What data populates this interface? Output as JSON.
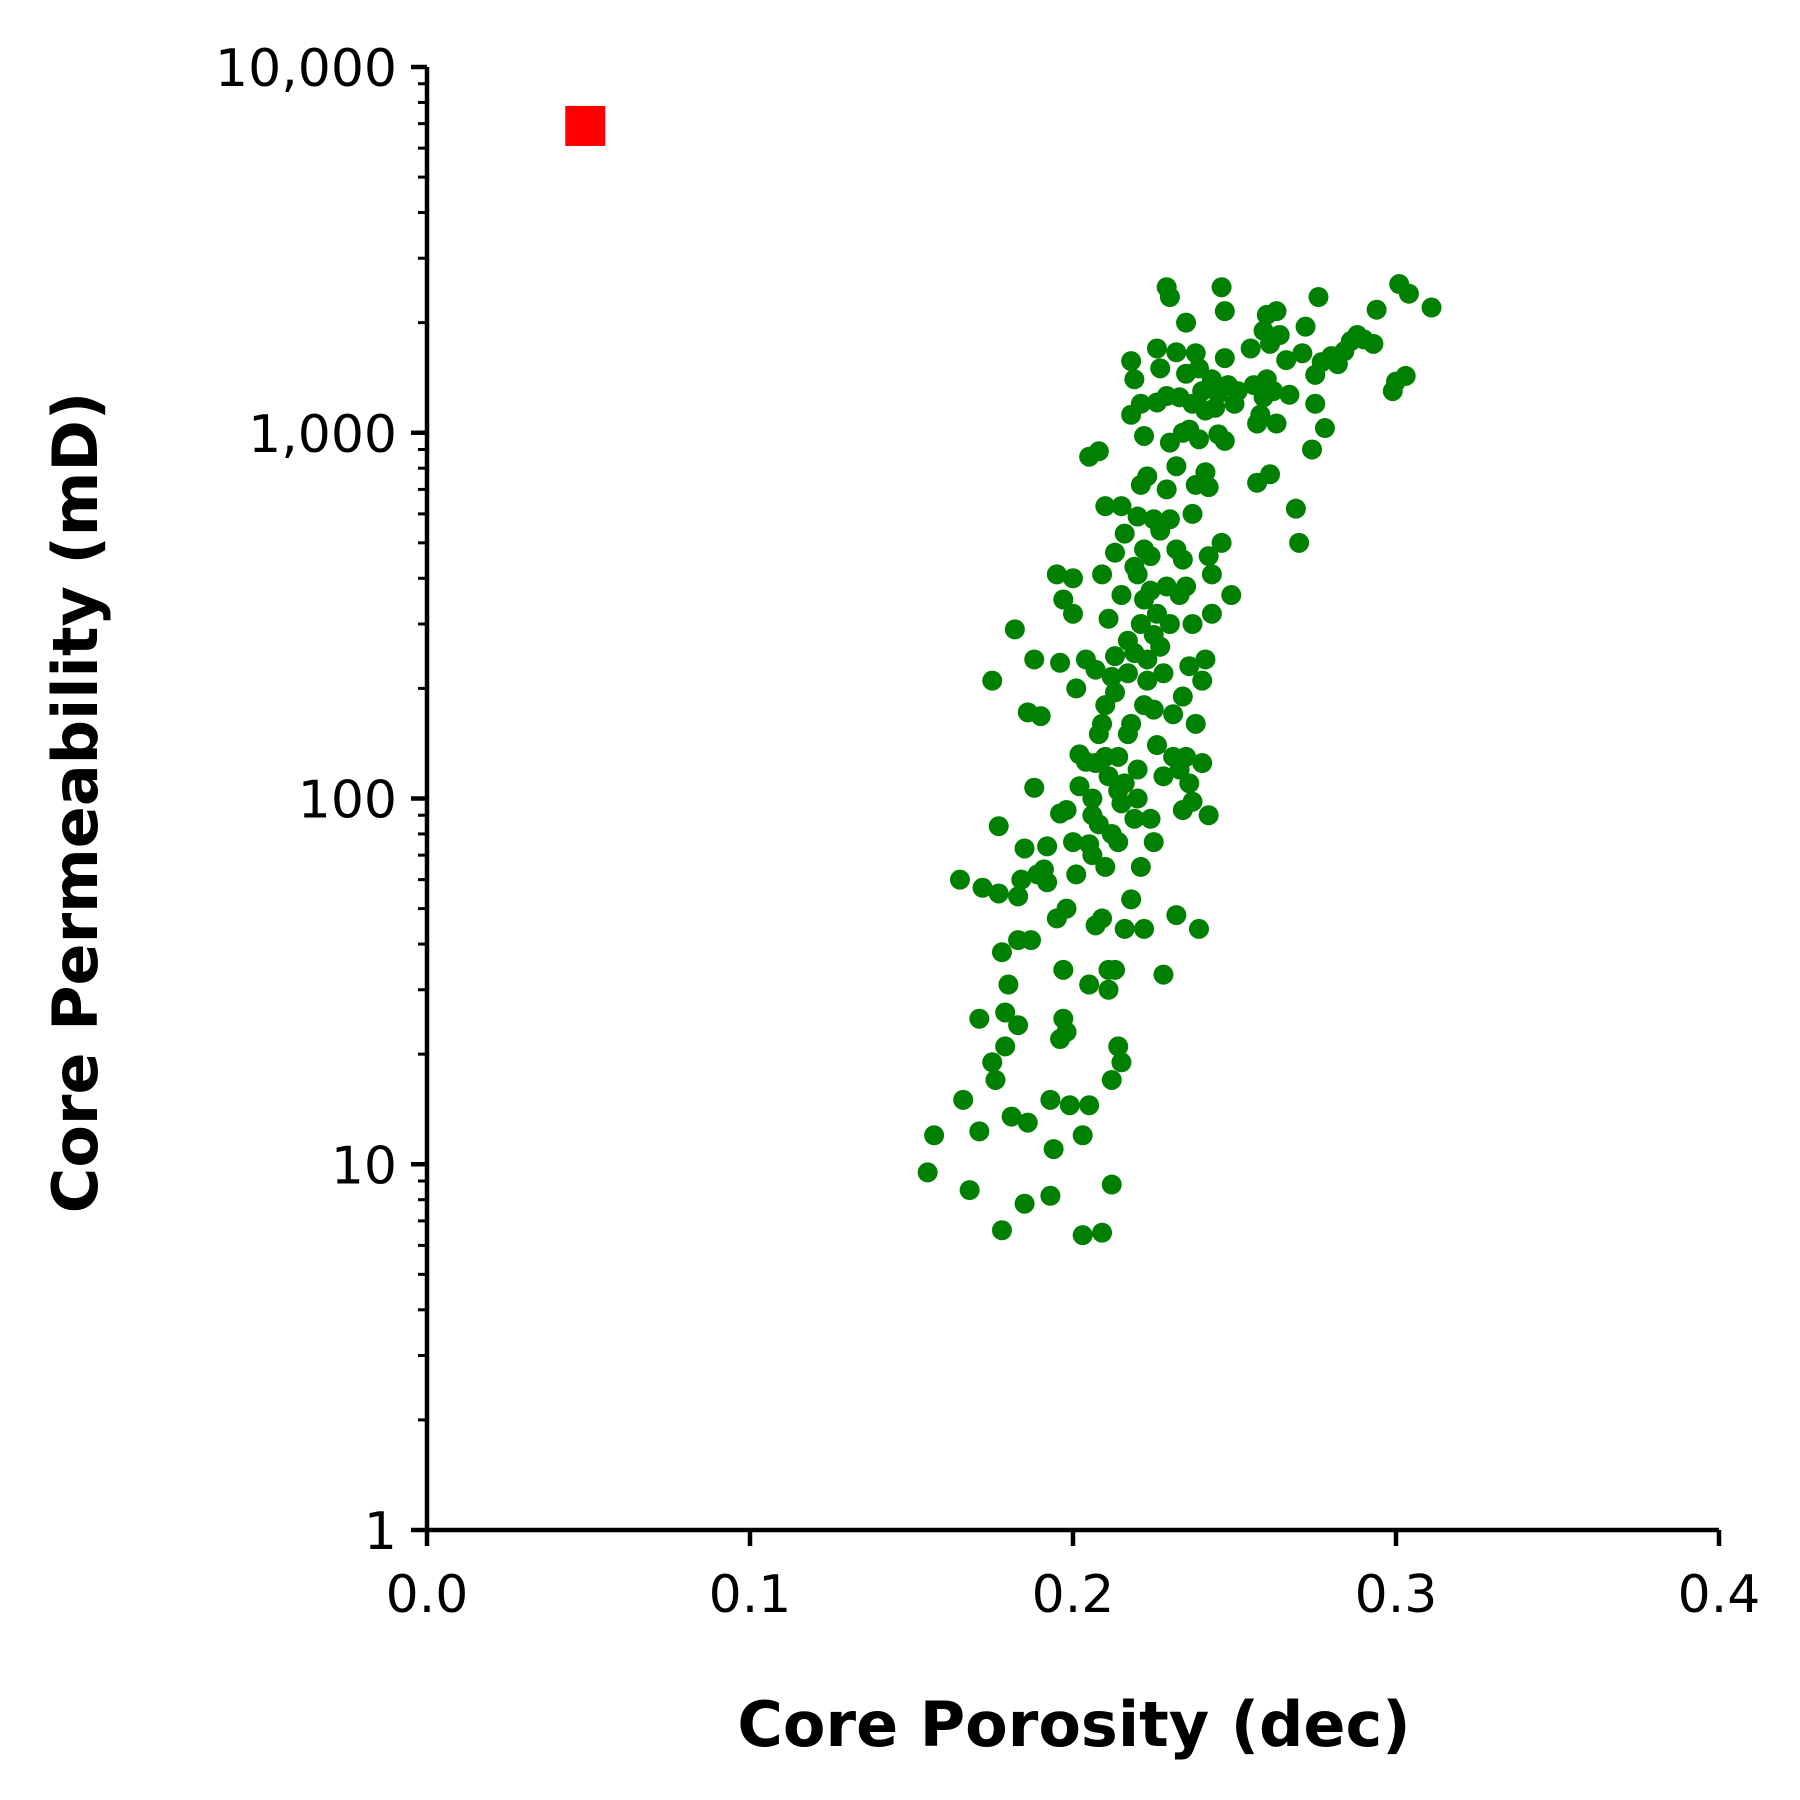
{
  "chart_data": {
    "type": "scatter",
    "title": "",
    "xlabel": "Core Porosity (dec)",
    "ylabel": "Core Permeability (mD)",
    "xlim": [
      0.0,
      0.4
    ],
    "ylim": [
      1,
      10000
    ],
    "yscale": "log",
    "grid": false,
    "x_ticks": [
      0.0,
      0.1,
      0.2,
      0.3,
      0.4
    ],
    "x_tick_labels": [
      "0.0",
      "0.1",
      "0.2",
      "0.3",
      "0.4"
    ],
    "y_ticks": [
      1,
      10,
      100,
      1000,
      10000
    ],
    "y_tick_labels": [
      "1",
      "10",
      "100",
      "1,000",
      "10,000"
    ],
    "colors": {
      "points": "#008000",
      "highlight": "#ff0000"
    },
    "series": [
      {
        "marker": "circle",
        "color": "#008000",
        "points": [
          [
            0.155,
            9.5
          ],
          [
            0.157,
            12
          ],
          [
            0.165,
            60
          ],
          [
            0.166,
            15
          ],
          [
            0.168,
            8.5
          ],
          [
            0.171,
            12.3
          ],
          [
            0.171,
            25
          ],
          [
            0.172,
            57
          ],
          [
            0.175,
            19
          ],
          [
            0.175,
            210
          ],
          [
            0.176,
            17
          ],
          [
            0.177,
            55
          ],
          [
            0.177,
            84
          ],
          [
            0.178,
            6.6
          ],
          [
            0.178,
            38
          ],
          [
            0.179,
            26
          ],
          [
            0.179,
            21
          ],
          [
            0.18,
            31
          ],
          [
            0.181,
            13.5
          ],
          [
            0.182,
            290
          ],
          [
            0.183,
            24
          ],
          [
            0.183,
            41
          ],
          [
            0.183,
            54
          ],
          [
            0.184,
            60
          ],
          [
            0.185,
            73
          ],
          [
            0.185,
            7.8
          ],
          [
            0.186,
            172
          ],
          [
            0.186,
            13
          ],
          [
            0.187,
            41
          ],
          [
            0.188,
            240
          ],
          [
            0.188,
            107
          ],
          [
            0.189,
            62
          ],
          [
            0.19,
            168
          ],
          [
            0.191,
            64
          ],
          [
            0.192,
            59
          ],
          [
            0.192,
            74
          ],
          [
            0.193,
            15
          ],
          [
            0.193,
            8.2
          ],
          [
            0.194,
            11
          ],
          [
            0.195,
            410
          ],
          [
            0.195,
            47
          ],
          [
            0.196,
            22
          ],
          [
            0.196,
            91
          ],
          [
            0.196,
            235
          ],
          [
            0.197,
            25
          ],
          [
            0.197,
            350
          ],
          [
            0.197,
            34
          ],
          [
            0.198,
            23
          ],
          [
            0.198,
            93
          ],
          [
            0.198,
            50
          ],
          [
            0.199,
            14.5
          ],
          [
            0.2,
            400
          ],
          [
            0.2,
            76
          ],
          [
            0.2,
            320
          ],
          [
            0.201,
            62
          ],
          [
            0.201,
            200
          ],
          [
            0.202,
            108
          ],
          [
            0.202,
            132
          ],
          [
            0.203,
            12
          ],
          [
            0.203,
            6.4
          ],
          [
            0.204,
            240
          ],
          [
            0.204,
            126
          ],
          [
            0.205,
            75
          ],
          [
            0.205,
            14.5
          ],
          [
            0.205,
            860
          ],
          [
            0.205,
            31
          ],
          [
            0.206,
            100
          ],
          [
            0.206,
            90
          ],
          [
            0.206,
            70
          ],
          [
            0.207,
            125
          ],
          [
            0.207,
            45
          ],
          [
            0.207,
            225
          ],
          [
            0.208,
            890
          ],
          [
            0.208,
            150
          ],
          [
            0.208,
            85
          ],
          [
            0.209,
            160
          ],
          [
            0.209,
            47
          ],
          [
            0.209,
            410
          ],
          [
            0.209,
            6.5
          ],
          [
            0.21,
            630
          ],
          [
            0.21,
            180
          ],
          [
            0.21,
            130
          ],
          [
            0.21,
            65
          ],
          [
            0.211,
            310
          ],
          [
            0.211,
            34
          ],
          [
            0.211,
            30
          ],
          [
            0.211,
            115
          ],
          [
            0.212,
            215
          ],
          [
            0.212,
            17
          ],
          [
            0.212,
            8.8
          ],
          [
            0.212,
            80
          ],
          [
            0.213,
            195
          ],
          [
            0.213,
            470
          ],
          [
            0.213,
            245
          ],
          [
            0.213,
            34
          ],
          [
            0.214,
            130
          ],
          [
            0.214,
            105
          ],
          [
            0.214,
            21
          ],
          [
            0.214,
            76
          ],
          [
            0.215,
            97
          ],
          [
            0.215,
            360
          ],
          [
            0.215,
            19
          ],
          [
            0.215,
            630
          ],
          [
            0.216,
            110
          ],
          [
            0.216,
            530
          ],
          [
            0.216,
            44
          ],
          [
            0.217,
            220
          ],
          [
            0.217,
            270
          ],
          [
            0.217,
            150
          ],
          [
            0.218,
            1120
          ],
          [
            0.218,
            1570
          ],
          [
            0.218,
            53
          ],
          [
            0.218,
            160
          ],
          [
            0.219,
            1400
          ],
          [
            0.219,
            250
          ],
          [
            0.219,
            430
          ],
          [
            0.219,
            88
          ],
          [
            0.22,
            100
          ],
          [
            0.22,
            410
          ],
          [
            0.22,
            120
          ],
          [
            0.22,
            590
          ],
          [
            0.221,
            1200
          ],
          [
            0.221,
            300
          ],
          [
            0.221,
            720
          ],
          [
            0.221,
            65
          ],
          [
            0.222,
            980
          ],
          [
            0.222,
            350
          ],
          [
            0.222,
            480
          ],
          [
            0.222,
            180
          ],
          [
            0.222,
            44
          ],
          [
            0.223,
            240
          ],
          [
            0.223,
            210
          ],
          [
            0.223,
            760
          ],
          [
            0.224,
            370
          ],
          [
            0.224,
            460
          ],
          [
            0.224,
            88
          ],
          [
            0.225,
            580
          ],
          [
            0.225,
            280
          ],
          [
            0.225,
            175
          ],
          [
            0.225,
            76
          ],
          [
            0.226,
            1700
          ],
          [
            0.226,
            320
          ],
          [
            0.226,
            140
          ],
          [
            0.226,
            1210
          ],
          [
            0.227,
            540
          ],
          [
            0.227,
            1500
          ],
          [
            0.227,
            260
          ],
          [
            0.228,
            33
          ],
          [
            0.228,
            220
          ],
          [
            0.228,
            115
          ],
          [
            0.229,
            2500
          ],
          [
            0.229,
            1260
          ],
          [
            0.229,
            700
          ],
          [
            0.229,
            380
          ],
          [
            0.23,
            2350
          ],
          [
            0.23,
            940
          ],
          [
            0.23,
            300
          ],
          [
            0.23,
            580
          ],
          [
            0.231,
            130
          ],
          [
            0.231,
            170
          ],
          [
            0.232,
            1660
          ],
          [
            0.232,
            810
          ],
          [
            0.232,
            480
          ],
          [
            0.232,
            48
          ],
          [
            0.233,
            1250
          ],
          [
            0.233,
            360
          ],
          [
            0.233,
            120
          ],
          [
            0.234,
            1000
          ],
          [
            0.234,
            190
          ],
          [
            0.234,
            450
          ],
          [
            0.234,
            93
          ],
          [
            0.235,
            2000
          ],
          [
            0.235,
            1450
          ],
          [
            0.235,
            380
          ],
          [
            0.235,
            130
          ],
          [
            0.236,
            1020
          ],
          [
            0.236,
            230
          ],
          [
            0.236,
            110
          ],
          [
            0.237,
            1200
          ],
          [
            0.237,
            600
          ],
          [
            0.237,
            300
          ],
          [
            0.237,
            98
          ],
          [
            0.238,
            1650
          ],
          [
            0.238,
            720
          ],
          [
            0.238,
            160
          ],
          [
            0.239,
            1500
          ],
          [
            0.239,
            960
          ],
          [
            0.239,
            44
          ],
          [
            0.24,
            1300
          ],
          [
            0.24,
            210
          ],
          [
            0.24,
            125
          ],
          [
            0.241,
            1150
          ],
          [
            0.241,
            780
          ],
          [
            0.241,
            240
          ],
          [
            0.242,
            460
          ],
          [
            0.242,
            710
          ],
          [
            0.242,
            90
          ],
          [
            0.243,
            410
          ],
          [
            0.243,
            1400
          ],
          [
            0.243,
            320
          ],
          [
            0.244,
            1170
          ],
          [
            0.245,
            990
          ],
          [
            0.245,
            1280
          ],
          [
            0.246,
            2500
          ],
          [
            0.246,
            500
          ],
          [
            0.247,
            2150
          ],
          [
            0.247,
            1600
          ],
          [
            0.247,
            950
          ],
          [
            0.248,
            1350
          ],
          [
            0.249,
            360
          ],
          [
            0.25,
            1200
          ],
          [
            0.251,
            1300
          ],
          [
            0.255,
            1700
          ],
          [
            0.256,
            1350
          ],
          [
            0.257,
            1060
          ],
          [
            0.257,
            730
          ],
          [
            0.258,
            1120
          ],
          [
            0.259,
            1900
          ],
          [
            0.259,
            1250
          ],
          [
            0.26,
            2100
          ],
          [
            0.26,
            1400
          ],
          [
            0.261,
            1750
          ],
          [
            0.261,
            770
          ],
          [
            0.262,
            1300
          ],
          [
            0.263,
            2150
          ],
          [
            0.263,
            1060
          ],
          [
            0.264,
            1850
          ],
          [
            0.266,
            1580
          ],
          [
            0.267,
            1270
          ],
          [
            0.269,
            620
          ],
          [
            0.27,
            500
          ],
          [
            0.271,
            1650
          ],
          [
            0.272,
            1950
          ],
          [
            0.274,
            900
          ],
          [
            0.275,
            1440
          ],
          [
            0.275,
            1200
          ],
          [
            0.276,
            2350
          ],
          [
            0.277,
            1560
          ],
          [
            0.278,
            1030
          ],
          [
            0.28,
            1620
          ],
          [
            0.282,
            1540
          ],
          [
            0.284,
            1670
          ],
          [
            0.286,
            1780
          ],
          [
            0.288,
            1850
          ],
          [
            0.29,
            1800
          ],
          [
            0.293,
            1750
          ],
          [
            0.294,
            2170
          ],
          [
            0.299,
            1300
          ],
          [
            0.3,
            1380
          ],
          [
            0.301,
            2550
          ],
          [
            0.303,
            1430
          ],
          [
            0.304,
            2400
          ],
          [
            0.311,
            2200
          ]
        ]
      },
      {
        "marker": "square",
        "color": "#ff0000",
        "points": [
          [
            0.049,
            6900
          ]
        ]
      }
    ]
  }
}
